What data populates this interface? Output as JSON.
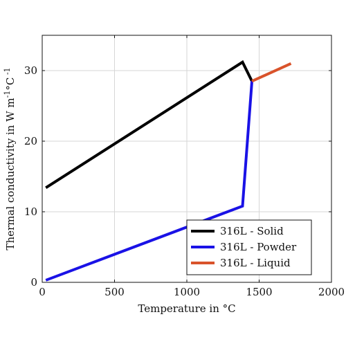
{
  "chart_data": {
    "type": "line",
    "xlabel": "Temperature in °C",
    "ylabel": "Thermal conductivity in W m",
    "ylabel_sup1": "-1",
    "ylabel_mid": "°C",
    "ylabel_sup2": " -1",
    "xlim": [
      0,
      2000
    ],
    "ylim": [
      0,
      35
    ],
    "xticks": [
      0,
      500,
      1000,
      1500,
      2000
    ],
    "yticks": [
      0,
      10,
      20,
      30
    ],
    "grid": true,
    "legend_position": "bottom-right",
    "series": [
      {
        "name": "316L - Solid",
        "color": "#000000",
        "points": [
          [
            25,
            13.4
          ],
          [
            1385,
            31.2
          ],
          [
            1450,
            28.5
          ]
        ]
      },
      {
        "name": "316L - Powder",
        "color": "#1a12e6",
        "points": [
          [
            25,
            0.3
          ],
          [
            1385,
            10.8
          ],
          [
            1450,
            28.5
          ]
        ]
      },
      {
        "name": "316L - Liquid",
        "color": "#d9532b",
        "points": [
          [
            1450,
            28.5
          ],
          [
            1720,
            31.0
          ]
        ]
      }
    ]
  }
}
